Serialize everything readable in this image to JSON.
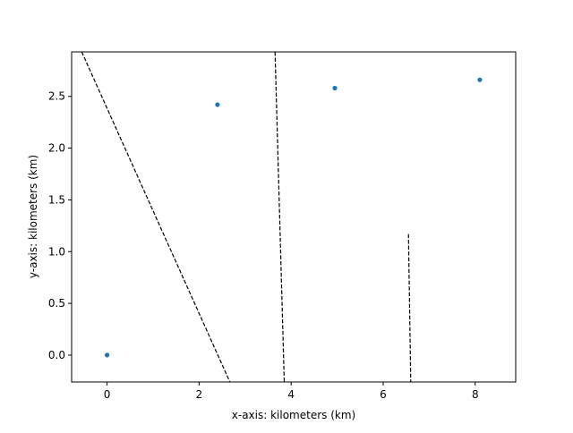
{
  "chart_data": {
    "type": "scatter",
    "title": "",
    "xlabel": "x-axis: kilometers (km)",
    "ylabel": "y-axis: kilometers (km)",
    "xlim": [
      -0.77,
      8.88
    ],
    "ylim": [
      -0.26,
      2.93
    ],
    "xticks": [
      0,
      2,
      4,
      6,
      8
    ],
    "xtick_labels": [
      "0",
      "2",
      "4",
      "6",
      "8"
    ],
    "yticks": [
      0.0,
      0.5,
      1.0,
      1.5,
      2.0,
      2.5
    ],
    "ytick_labels": [
      "0.0",
      "0.5",
      "1.0",
      "1.5",
      "2.0",
      "2.5"
    ],
    "grid": false,
    "legend": "none",
    "colors": {
      "points": "#1f77b4",
      "lines": "#000000"
    },
    "points": [
      {
        "x": 0.0,
        "y": 0.0
      },
      {
        "x": 2.4,
        "y": 2.42
      },
      {
        "x": 4.95,
        "y": 2.58
      },
      {
        "x": 8.1,
        "y": 2.66
      }
    ],
    "lines": [
      {
        "style": "dashed",
        "x": [
          -0.55,
          2.67
        ],
        "y": [
          2.93,
          -0.26
        ]
      },
      {
        "style": "dashed",
        "x": [
          3.65,
          3.85
        ],
        "y": [
          2.93,
          -0.26
        ]
      },
      {
        "style": "dashed",
        "x": [
          6.55,
          6.6
        ],
        "y": [
          1.17,
          -0.26
        ]
      }
    ]
  }
}
